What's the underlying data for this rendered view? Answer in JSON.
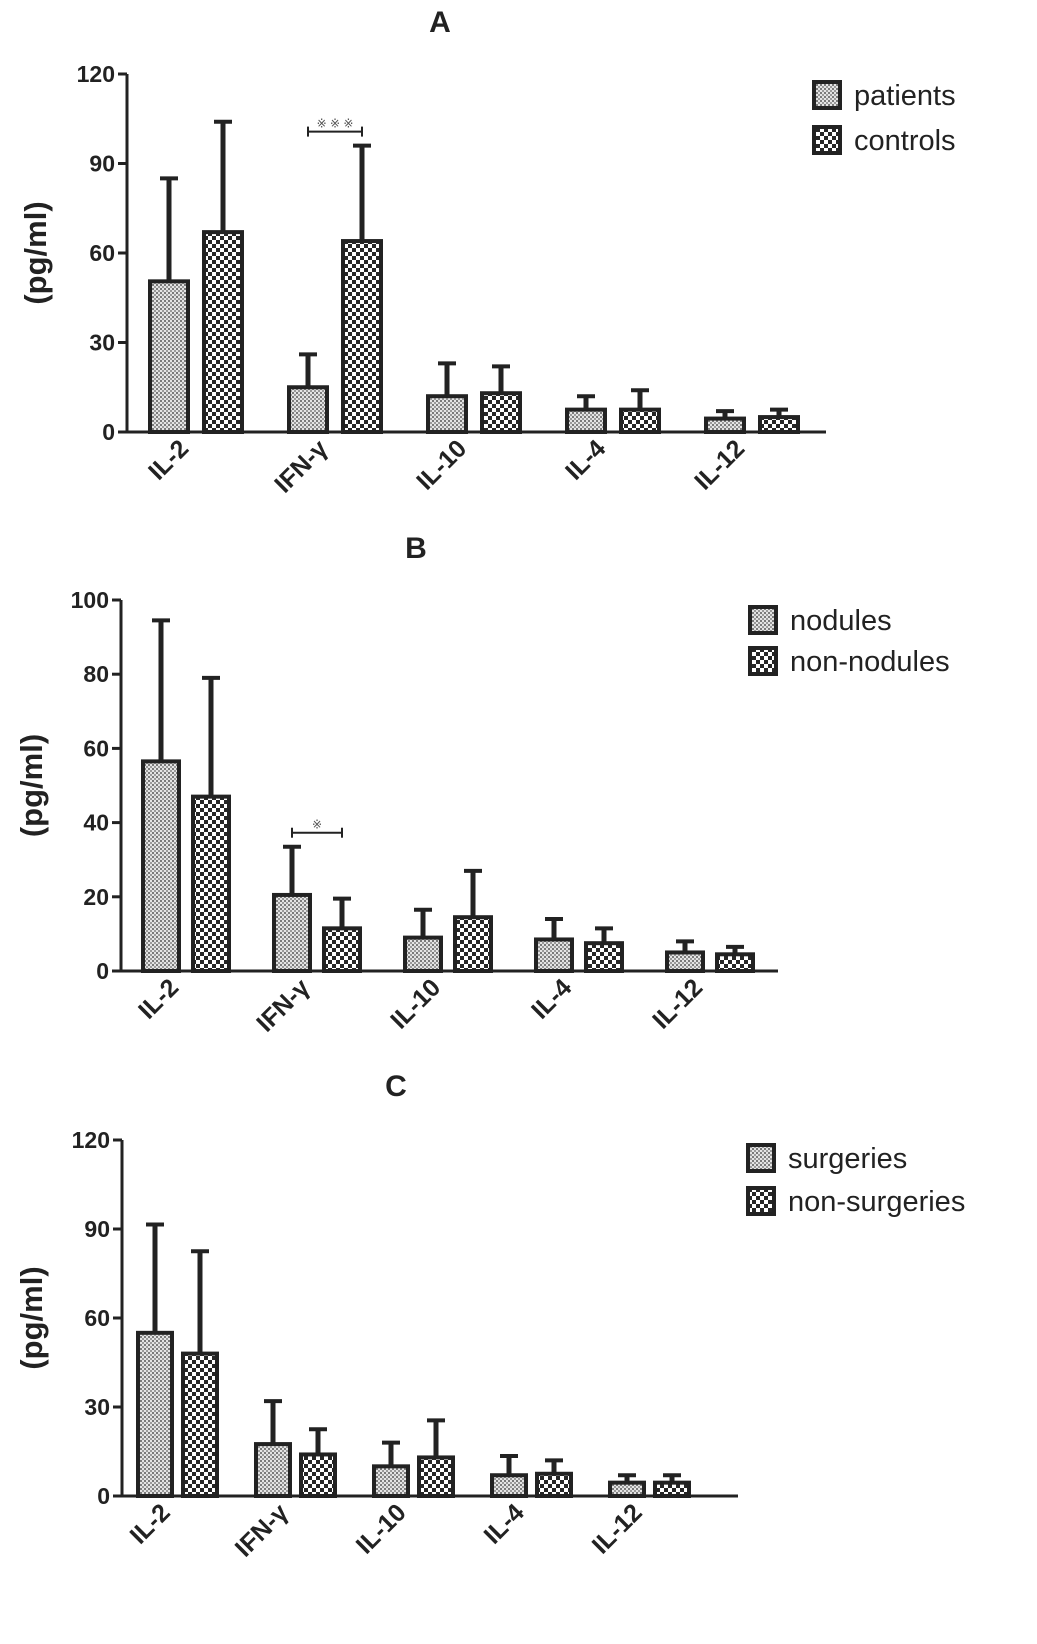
{
  "chart_data": [
    {
      "type": "bar",
      "panel": "A",
      "title": "A",
      "ylabel": "(pg/ml)",
      "xlabel": "",
      "ylim": [
        0,
        120
      ],
      "yticks": [
        0,
        30,
        60,
        90,
        120
      ],
      "categories": [
        "IL-2",
        "IFN-γ",
        "IL-10",
        "IL-4",
        "IL-12"
      ],
      "series": [
        {
          "name": "patients",
          "pattern": "fine",
          "values": [
            50.5,
            15.0,
            12.0,
            7.5,
            4.5
          ],
          "error": [
            34.5,
            11.0,
            11.0,
            4.5,
            2.5
          ]
        },
        {
          "name": "controls",
          "pattern": "checker",
          "values": [
            67.0,
            64.0,
            13.0,
            7.5,
            5.0
          ],
          "error": [
            37.0,
            32.0,
            9.0,
            6.5,
            2.5
          ]
        }
      ],
      "significance": [
        {
          "category": "IFN-γ",
          "label": "※ ※ ※"
        }
      ],
      "legend_position": "top-right",
      "grid": false
    },
    {
      "type": "bar",
      "panel": "B",
      "title": "B",
      "ylabel": "(pg/ml)",
      "xlabel": "",
      "ylim": [
        0,
        100
      ],
      "yticks": [
        0,
        20,
        40,
        60,
        80,
        100
      ],
      "categories": [
        "IL-2",
        "IFN-γ",
        "IL-10",
        "IL-4",
        "IL-12"
      ],
      "series": [
        {
          "name": "nodules",
          "pattern": "fine",
          "values": [
            56.5,
            20.5,
            9.0,
            8.5,
            5.0
          ],
          "error": [
            38.0,
            13.0,
            7.5,
            5.5,
            3.0
          ]
        },
        {
          "name": "non-nodules",
          "pattern": "checker",
          "values": [
            47.0,
            11.5,
            14.5,
            7.5,
            4.5
          ],
          "error": [
            32.0,
            8.0,
            12.5,
            4.0,
            2.0
          ]
        }
      ],
      "significance": [
        {
          "category": "IFN-γ",
          "label": "※"
        }
      ],
      "legend_position": "top-right",
      "grid": false
    },
    {
      "type": "bar",
      "panel": "C",
      "title": "C",
      "ylabel": "(pg/ml)",
      "xlabel": "",
      "ylim": [
        0,
        120
      ],
      "yticks": [
        0,
        30,
        60,
        90,
        120
      ],
      "categories": [
        "IL-2",
        "IFN-γ",
        "IL-10",
        "IL-4",
        "IL-12"
      ],
      "series": [
        {
          "name": "surgeries",
          "pattern": "fine",
          "values": [
            55.0,
            17.5,
            10.0,
            7.0,
            4.5
          ],
          "error": [
            36.5,
            14.5,
            8.0,
            6.5,
            2.5
          ]
        },
        {
          "name": "non-surgeries",
          "pattern": "checker",
          "values": [
            48.0,
            14.0,
            13.0,
            7.5,
            4.5
          ],
          "error": [
            34.5,
            8.5,
            12.5,
            4.5,
            2.5
          ]
        }
      ],
      "significance": [],
      "legend_position": "top-right",
      "grid": false
    }
  ]
}
